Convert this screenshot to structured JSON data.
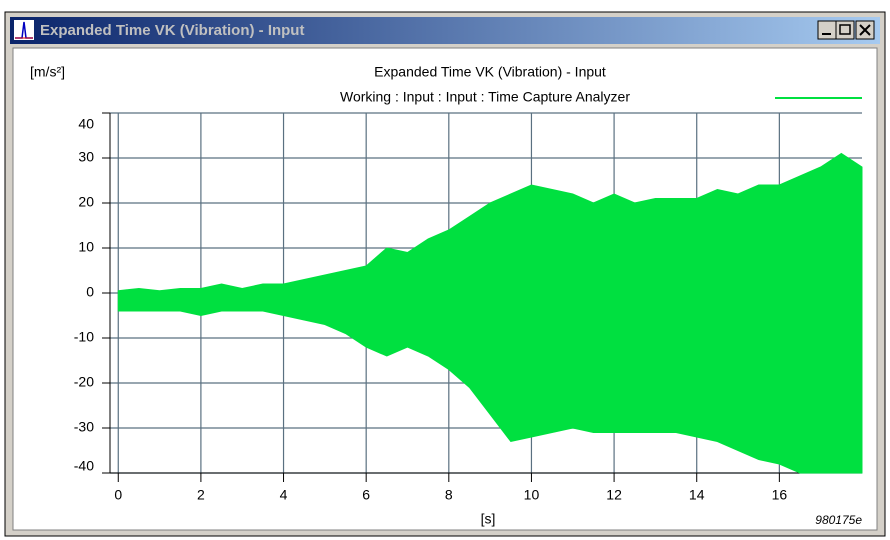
{
  "window": {
    "title": "Expanded Time VK (Vibration) - Input"
  },
  "chart_data": {
    "type": "envelope",
    "title": "Expanded Time VK (Vibration) - Input",
    "ylabel": "[m/s²]",
    "xlabel": "[s]",
    "annotation": "980175e",
    "x": [
      0,
      0.5,
      1,
      1.5,
      2,
      2.5,
      3,
      3.5,
      4,
      4.5,
      5,
      5.5,
      6,
      6.5,
      7,
      7.5,
      8,
      8.5,
      9,
      9.5,
      10,
      10.5,
      11,
      11.5,
      12,
      12.5,
      13,
      13.5,
      14,
      14.5,
      15,
      15.5,
      16,
      16.5,
      17,
      17.5,
      18
    ],
    "series": [
      {
        "name": "Working : Input : Input : Time Capture Analyzer",
        "color": "#00e040",
        "values": [
          0.5,
          1,
          0.5,
          1,
          1,
          2,
          1,
          2,
          2,
          3,
          4,
          5,
          6,
          10,
          9,
          12,
          14,
          17,
          20,
          22,
          24,
          23,
          22,
          20,
          22,
          20,
          21,
          21,
          21,
          23,
          22,
          24,
          24,
          26,
          28,
          31,
          28
        ],
        "lows": [
          -4,
          -4,
          -4,
          -4,
          -5,
          -4,
          -4,
          -4,
          -5,
          -6,
          -7,
          -9,
          -12,
          -14,
          -12,
          -14,
          -17,
          -21,
          -27,
          -33,
          -32,
          -31,
          -30,
          -31,
          -31,
          -31,
          -31,
          -31,
          -32,
          -33,
          -35,
          -37,
          -38,
          -40,
          -40,
          -40,
          -40
        ]
      }
    ],
    "xlim": [
      -0.2,
      18
    ],
    "ylim": [
      -40,
      40
    ],
    "xticks": [
      0,
      2,
      4,
      6,
      8,
      10,
      12,
      14,
      16
    ],
    "yticks": [
      -40,
      -30,
      -20,
      -10,
      0,
      10,
      20,
      30,
      40
    ],
    "grid": true
  }
}
